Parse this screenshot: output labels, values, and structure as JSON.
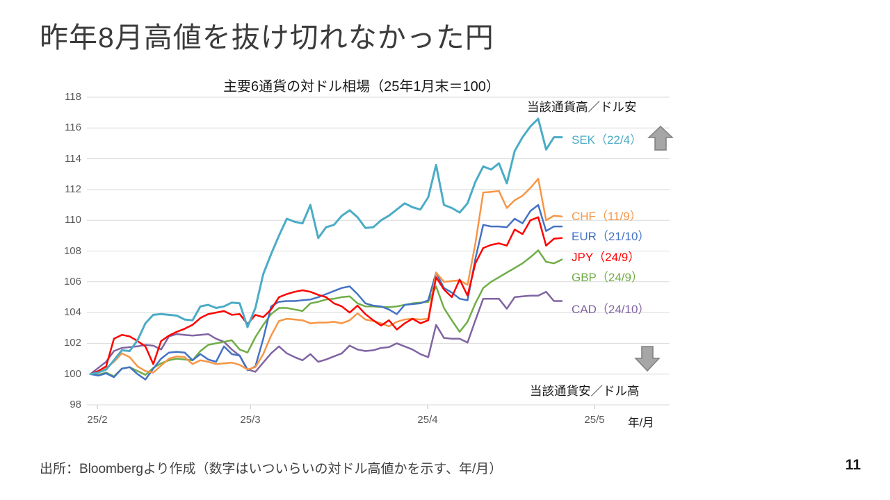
{
  "slide": {
    "title": "昨年8月高値を抜け切れなかった円",
    "source": "出所：Bloombergより作成（数字はいついらいの対ドル高値かを示す、年/月）",
    "page_number": "11"
  },
  "chart_data": {
    "type": "line",
    "title": "主要6通貨の対ドル相場（25年1月末＝100）",
    "annotation_top": "当該通貨高／ドル安",
    "annotation_bottom": "当該通貨安／ドル高",
    "legend_position": "right-of-line-ends",
    "grid": "horizontal-only",
    "gridline_color": "#d9d9d9",
    "arrow_color": "#a6a6a6",
    "arrow_border_color": "#7f7f7f",
    "x_axis": {
      "unit_label": "年/月",
      "ticks": [
        "25/2",
        "25/3",
        "25/4",
        "25/5"
      ]
    },
    "y_axis": {
      "min": 98,
      "max": 118,
      "step": 2,
      "ticks": [
        98,
        100,
        102,
        104,
        106,
        108,
        110,
        112,
        114,
        116,
        118
      ]
    },
    "x_description": "Daily observations (business days) from end of Jan 2025 (=100) to late Apr 2025",
    "series": [
      {
        "name": "SEK",
        "label": "SEK（22/4）",
        "color": "#4bacc6",
        "values": [
          100,
          100.1,
          100.3,
          100.9,
          101.55,
          101.5,
          102.2,
          103.3,
          103.85,
          103.9,
          103.85,
          103.8,
          103.55,
          103.5,
          104.4,
          104.5,
          104.3,
          104.4,
          104.65,
          104.6,
          103.05,
          104.3,
          106.5,
          107.8,
          109.0,
          110.1,
          109.9,
          109.8,
          111.0,
          108.85,
          109.55,
          109.7,
          110.3,
          110.65,
          110.2,
          109.5,
          109.55,
          110.0,
          110.3,
          110.7,
          111.1,
          110.85,
          110.7,
          111.5,
          113.6,
          111.0,
          110.8,
          110.5,
          111.1,
          112.5,
          113.5,
          113.3,
          113.7,
          112.4,
          114.5,
          115.4,
          116.1,
          116.6,
          114.6,
          115.4,
          115.4
        ]
      },
      {
        "name": "CHF",
        "label": "CHF（11/9）",
        "color": "#f79646",
        "values": [
          100,
          100.1,
          100.4,
          100.8,
          101.35,
          101.1,
          100.5,
          100.2,
          100.1,
          100.55,
          101.0,
          101.15,
          101.1,
          100.65,
          100.9,
          100.8,
          100.65,
          100.7,
          100.75,
          100.6,
          100.3,
          100.45,
          101.3,
          102.5,
          103.45,
          103.6,
          103.55,
          103.5,
          103.3,
          103.35,
          103.35,
          103.4,
          103.3,
          103.5,
          103.95,
          103.55,
          103.45,
          103.3,
          103.1,
          103.4,
          103.55,
          103.6,
          103.55,
          103.6,
          106.6,
          106.0,
          106.05,
          106.1,
          105.8,
          108.5,
          111.8,
          111.85,
          111.9,
          110.8,
          111.3,
          111.6,
          112.1,
          112.7,
          110.0,
          110.3,
          110.25
        ]
      },
      {
        "name": "EUR",
        "label": "EUR（21/10）",
        "color": "#4472c4",
        "values": [
          100,
          99.9,
          100.05,
          99.8,
          100.35,
          100.45,
          100.0,
          99.65,
          100.35,
          101.0,
          101.4,
          101.45,
          101.4,
          100.9,
          101.3,
          100.95,
          100.8,
          101.8,
          101.3,
          101.2,
          100.25,
          100.5,
          102.3,
          104.4,
          104.7,
          104.75,
          104.75,
          104.8,
          104.85,
          105.0,
          105.2,
          105.4,
          105.6,
          105.7,
          105.2,
          104.6,
          104.45,
          104.4,
          104.2,
          103.9,
          104.5,
          104.55,
          104.6,
          104.8,
          106.6,
          105.6,
          105.3,
          104.9,
          104.8,
          107.5,
          109.7,
          109.6,
          109.6,
          109.55,
          110.1,
          109.8,
          110.6,
          111.0,
          109.3,
          109.6,
          109.6
        ]
      },
      {
        "name": "JPY",
        "label": "JPY（24/9）",
        "color": "#ff0000",
        "values": [
          100,
          100.2,
          100.5,
          102.3,
          102.55,
          102.45,
          102.15,
          101.8,
          100.65,
          102.15,
          102.5,
          102.75,
          102.95,
          103.2,
          103.65,
          103.9,
          104.0,
          104.1,
          103.85,
          103.9,
          103.25,
          103.85,
          103.7,
          104.2,
          105.0,
          105.2,
          105.35,
          105.45,
          105.35,
          105.15,
          105.0,
          104.6,
          104.4,
          104.0,
          104.45,
          103.9,
          103.5,
          103.15,
          103.5,
          102.9,
          103.3,
          103.6,
          103.3,
          103.5,
          106.3,
          105.5,
          105.0,
          106.15,
          105.1,
          107.2,
          108.2,
          108.4,
          108.5,
          108.35,
          109.4,
          109.1,
          110.0,
          110.2,
          108.35,
          108.8,
          108.85
        ]
      },
      {
        "name": "GBP",
        "label": "GBP（24/9）",
        "color": "#70ad47",
        "values": [
          100,
          99.95,
          100.1,
          99.85,
          100.35,
          100.45,
          100.2,
          99.95,
          100.4,
          100.7,
          100.9,
          101.0,
          100.95,
          100.9,
          101.5,
          101.9,
          102.0,
          102.1,
          102.2,
          101.6,
          101.4,
          102.4,
          103.2,
          103.9,
          104.3,
          104.3,
          104.2,
          104.1,
          104.6,
          104.7,
          104.85,
          104.9,
          105.0,
          105.05,
          104.6,
          104.4,
          104.4,
          104.35,
          104.35,
          104.4,
          104.5,
          104.6,
          104.65,
          104.7,
          105.7,
          104.3,
          103.5,
          102.75,
          103.4,
          104.6,
          105.6,
          106.0,
          106.3,
          106.6,
          106.9,
          107.2,
          107.6,
          108.05,
          107.3,
          107.2,
          107.45
        ]
      },
      {
        "name": "CAD",
        "label": "CAD（24/10）",
        "color": "#8064a2",
        "values": [
          100,
          100.4,
          100.8,
          101.5,
          101.7,
          101.75,
          101.8,
          101.9,
          101.85,
          101.6,
          102.45,
          102.6,
          102.55,
          102.5,
          102.55,
          102.6,
          102.3,
          102.1,
          101.6,
          101.2,
          100.3,
          100.15,
          100.75,
          101.35,
          101.8,
          101.35,
          101.1,
          100.9,
          101.3,
          100.8,
          100.95,
          101.15,
          101.35,
          101.85,
          101.6,
          101.5,
          101.55,
          101.7,
          101.75,
          102.0,
          101.8,
          101.6,
          101.3,
          101.1,
          103.2,
          102.35,
          102.3,
          102.3,
          102.05,
          103.5,
          104.9,
          104.9,
          104.9,
          104.25,
          105.0,
          105.05,
          105.1,
          105.1,
          105.35,
          104.75,
          104.75
        ]
      }
    ]
  }
}
